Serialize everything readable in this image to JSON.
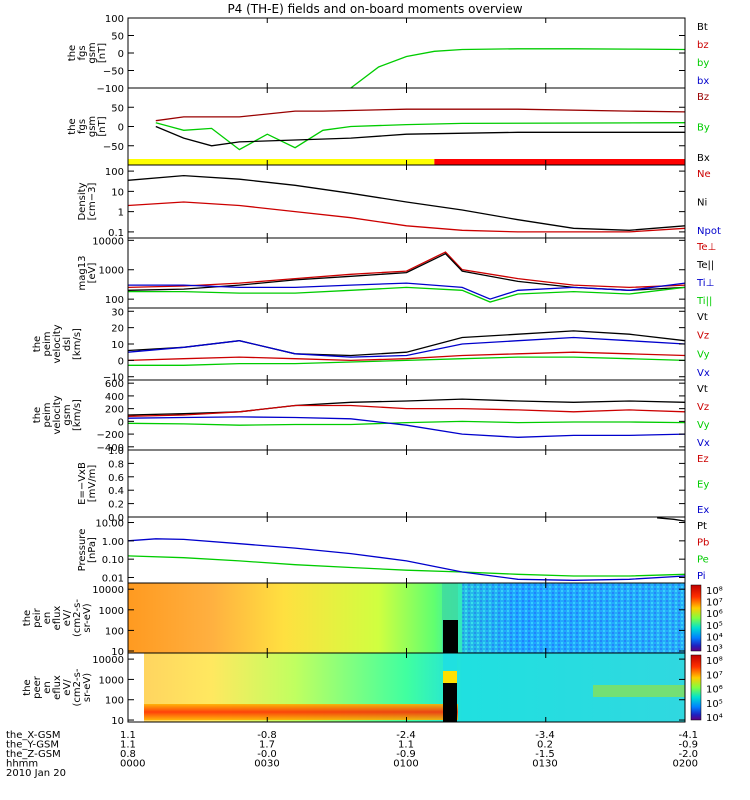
{
  "title": "P4 (TH-E) fields and on-board moments overview",
  "colors": {
    "black": "#000000",
    "red": "#cc0000",
    "green": "#00cc00",
    "blue": "#0000cc",
    "darkred": "#990000",
    "yellow": "#ffff00",
    "bar_red": "#ff0000"
  },
  "ephemeris": {
    "rows": [
      {
        "label": "the_X-GSM",
        "values": [
          "1.1",
          "-0.8",
          "-2.4",
          "-3.4",
          "-4.1"
        ]
      },
      {
        "label": "the_Y-GSM",
        "values": [
          "1.1",
          "1.7",
          "1.1",
          "0.2",
          "-0.9"
        ]
      },
      {
        "label": "the_Z-GSM",
        "values": [
          "0.8",
          "-0.0",
          "-0.9",
          "-1.5",
          "-2.0"
        ]
      },
      {
        "label": "hhmm",
        "values": [
          "0000",
          "0030",
          "0100",
          "0130",
          "0200"
        ]
      }
    ],
    "date": "2010 Jan 20"
  },
  "chart_data": [
    {
      "type": "line",
      "ylabel": [
        "the",
        "fgs",
        "gsm",
        "[nT]"
      ],
      "ylim": [
        -100,
        100
      ],
      "yticks": [
        "100",
        "50",
        "0",
        "−50",
        "−100"
      ],
      "tick_values": [
        100,
        50,
        0,
        -50,
        -100
      ],
      "series": [
        {
          "name": "Bt",
          "color": "#000000"
        },
        {
          "name": "bz",
          "color": "#cc0000"
        },
        {
          "name": "by",
          "color": "#00cc00",
          "x": [
            0.4,
            0.45,
            0.5,
            0.55,
            0.6,
            0.7,
            0.8,
            0.9,
            1.0
          ],
          "values": [
            -100,
            -40,
            -10,
            5,
            10,
            12,
            12,
            11,
            10
          ]
        },
        {
          "name": "bx",
          "color": "#0000cc"
        }
      ]
    },
    {
      "type": "line",
      "ylabel": [
        "the",
        "fgs",
        "gsm",
        "[nT]"
      ],
      "ylim": [
        -100,
        100
      ],
      "yticks": [
        "50",
        "0",
        "−50"
      ],
      "tick_values": [
        50,
        0,
        -50
      ],
      "series": [
        {
          "name": "Bz",
          "color": "#990000",
          "x": [
            0.05,
            0.1,
            0.2,
            0.3,
            0.35,
            0.5,
            0.7,
            0.9,
            1.0
          ],
          "values": [
            15,
            25,
            25,
            40,
            40,
            45,
            45,
            40,
            38
          ]
        },
        {
          "name": "By",
          "color": "#00cc00",
          "x": [
            0.05,
            0.1,
            0.15,
            0.2,
            0.25,
            0.3,
            0.35,
            0.4,
            0.5,
            0.6,
            1.0
          ],
          "values": [
            10,
            -10,
            -5,
            -60,
            -20,
            -55,
            -10,
            0,
            5,
            8,
            10
          ]
        },
        {
          "name": "Bx",
          "color": "#000000",
          "x": [
            0.05,
            0.1,
            0.15,
            0.2,
            0.3,
            0.4,
            0.5,
            0.7,
            1.0
          ],
          "values": [
            0,
            -30,
            -50,
            -40,
            -35,
            -30,
            -20,
            -15,
            -15
          ]
        }
      ],
      "status_bar": [
        {
          "from": 0,
          "to": 0.55,
          "color": "#ffff00"
        },
        {
          "from": 0.55,
          "to": 1.0,
          "color": "#ff0000"
        }
      ]
    },
    {
      "type": "line",
      "ylabel": [
        "Density",
        "[cm−3]"
      ],
      "scale": "log",
      "ylim": [
        0.05,
        200
      ],
      "yticks": [
        "100",
        "10",
        "1",
        "0.1"
      ],
      "tick_values": [
        100,
        10,
        1,
        0.1
      ],
      "series": [
        {
          "name": "Ne",
          "color": "#cc0000",
          "x": [
            0,
            0.1,
            0.2,
            0.3,
            0.4,
            0.5,
            0.6,
            0.7,
            0.8,
            0.9,
            1.0
          ],
          "values": [
            2,
            3,
            2,
            1,
            0.5,
            0.2,
            0.12,
            0.1,
            0.1,
            0.1,
            0.15
          ]
        },
        {
          "name": "Ni",
          "color": "#000000",
          "x": [
            0,
            0.1,
            0.2,
            0.3,
            0.4,
            0.5,
            0.6,
            0.7,
            0.8,
            0.9,
            1.0
          ],
          "values": [
            35,
            60,
            40,
            20,
            8,
            3,
            1.2,
            0.4,
            0.15,
            0.12,
            0.2
          ]
        },
        {
          "name": "Npot",
          "color": "#0000cc"
        }
      ]
    },
    {
      "type": "line",
      "ylabel": [
        "mag13",
        "[eV]"
      ],
      "scale": "log",
      "ylim": [
        50,
        12000
      ],
      "yticks": [
        "10000",
        "1000",
        "100"
      ],
      "tick_values": [
        10000,
        1000,
        100
      ],
      "series": [
        {
          "name": "Te⊥",
          "color": "#cc0000",
          "x": [
            0,
            0.1,
            0.2,
            0.3,
            0.4,
            0.5,
            0.57,
            0.6,
            0.7,
            0.8,
            0.9,
            1.0
          ],
          "values": [
            250,
            280,
            350,
            500,
            700,
            900,
            4000,
            1000,
            500,
            300,
            250,
            300
          ]
        },
        {
          "name": "Te||",
          "color": "#000000",
          "x": [
            0,
            0.1,
            0.2,
            0.3,
            0.4,
            0.5,
            0.57,
            0.6,
            0.7,
            0.8,
            0.9,
            1.0
          ],
          "values": [
            200,
            220,
            300,
            450,
            600,
            800,
            3500,
            900,
            400,
            250,
            200,
            250
          ]
        },
        {
          "name": "Ti⊥",
          "color": "#0000cc",
          "x": [
            0,
            0.1,
            0.2,
            0.3,
            0.4,
            0.5,
            0.6,
            0.65,
            0.7,
            0.8,
            0.9,
            1.0
          ],
          "values": [
            300,
            300,
            250,
            250,
            300,
            350,
            250,
            100,
            200,
            250,
            200,
            350
          ]
        },
        {
          "name": "Ti||",
          "color": "#00cc00",
          "x": [
            0,
            0.1,
            0.2,
            0.3,
            0.4,
            0.5,
            0.6,
            0.65,
            0.7,
            0.8,
            0.9,
            1.0
          ],
          "values": [
            180,
            180,
            160,
            160,
            200,
            250,
            200,
            80,
            150,
            180,
            150,
            250
          ]
        }
      ]
    },
    {
      "type": "line",
      "ylabel": [
        "the",
        "peim",
        "velocity",
        "dsl",
        "[km/s]"
      ],
      "ylim": [
        -12,
        32
      ],
      "yticks": [
        "30",
        "20",
        "10",
        "0",
        "−10"
      ],
      "tick_values": [
        30,
        20,
        10,
        0,
        -10
      ],
      "series": [
        {
          "name": "Vt",
          "color": "#000000",
          "x": [
            0,
            0.1,
            0.2,
            0.3,
            0.4,
            0.5,
            0.6,
            0.7,
            0.8,
            0.9,
            1.0
          ],
          "values": [
            6,
            8,
            12,
            4,
            3,
            5,
            14,
            16,
            18,
            16,
            12
          ]
        },
        {
          "name": "Vz",
          "color": "#cc0000",
          "x": [
            0,
            0.1,
            0.2,
            0.3,
            0.4,
            0.5,
            0.6,
            0.7,
            0.8,
            0.9,
            1.0
          ],
          "values": [
            0,
            1,
            2,
            1,
            0,
            1,
            3,
            4,
            5,
            4,
            3
          ]
        },
        {
          "name": "Vy",
          "color": "#00cc00",
          "x": [
            0,
            0.1,
            0.2,
            0.3,
            0.4,
            0.5,
            0.6,
            0.7,
            0.8,
            0.9,
            1.0
          ],
          "values": [
            -3,
            -3,
            -2,
            -2,
            -1,
            0,
            1,
            2,
            2,
            1,
            0
          ]
        },
        {
          "name": "Vx",
          "color": "#0000cc",
          "x": [
            0,
            0.1,
            0.2,
            0.3,
            0.4,
            0.5,
            0.6,
            0.7,
            0.8,
            0.9,
            1.0
          ],
          "values": [
            5,
            8,
            12,
            4,
            2,
            3,
            10,
            12,
            14,
            12,
            10
          ]
        }
      ]
    },
    {
      "type": "line",
      "ylabel": [
        "the",
        "peim",
        "velocity",
        "gsm",
        "[km/s]"
      ],
      "ylim": [
        -450,
        650
      ],
      "yticks": [
        "600",
        "400",
        "200",
        "0",
        "−200",
        "−400"
      ],
      "tick_values": [
        600,
        400,
        200,
        0,
        -200,
        -400
      ],
      "series": [
        {
          "name": "Vt",
          "color": "#000000",
          "x": [
            0,
            0.1,
            0.2,
            0.3,
            0.4,
            0.5,
            0.6,
            0.7,
            0.8,
            0.9,
            1.0
          ],
          "values": [
            100,
            120,
            150,
            250,
            300,
            320,
            350,
            320,
            300,
            320,
            300
          ]
        },
        {
          "name": "Vz",
          "color": "#cc0000",
          "x": [
            0,
            0.1,
            0.2,
            0.3,
            0.4,
            0.5,
            0.6,
            0.7,
            0.8,
            0.9,
            1.0
          ],
          "values": [
            80,
            100,
            150,
            250,
            250,
            200,
            200,
            180,
            150,
            180,
            150
          ]
        },
        {
          "name": "Vy",
          "color": "#00cc00",
          "x": [
            0,
            0.1,
            0.2,
            0.3,
            0.4,
            0.5,
            0.6,
            0.7,
            0.8,
            0.9,
            1.0
          ],
          "values": [
            -30,
            -40,
            -60,
            -50,
            -50,
            -20,
            0,
            -20,
            -10,
            -10,
            -20
          ]
        },
        {
          "name": "Vx",
          "color": "#0000cc",
          "x": [
            0,
            0.1,
            0.2,
            0.3,
            0.4,
            0.5,
            0.6,
            0.7,
            0.8,
            0.9,
            1.0
          ],
          "values": [
            50,
            60,
            70,
            60,
            40,
            -60,
            -200,
            -250,
            -220,
            -220,
            -200
          ]
        }
      ]
    },
    {
      "type": "line",
      "ylabel": [
        "E=−VxB",
        "[mV/m]"
      ],
      "ylim": [
        0,
        1
      ],
      "yticks": [
        "1.0",
        "0.8",
        "0.6",
        "0.4",
        "0.2",
        "0.0"
      ],
      "tick_values": [
        1.0,
        0.8,
        0.6,
        0.4,
        0.2,
        0.0
      ],
      "series": [
        {
          "name": "Ez",
          "color": "#cc0000"
        },
        {
          "name": "Ey",
          "color": "#00cc00"
        },
        {
          "name": "Ex",
          "color": "#0000cc"
        }
      ]
    },
    {
      "type": "line",
      "ylabel": [
        "Pressure",
        "[nPa]"
      ],
      "scale": "log",
      "ylim": [
        0.005,
        20
      ],
      "yticks": [
        "10.00",
        "1.00",
        "0.10",
        "0.01"
      ],
      "tick_values": [
        10,
        1,
        0.1,
        0.01
      ],
      "series": [
        {
          "name": "Pt",
          "color": "#000000",
          "x": [
            0.95,
            0.98,
            1.0
          ],
          "values": [
            18,
            15,
            12
          ]
        },
        {
          "name": "Pb",
          "color": "#cc0000"
        },
        {
          "name": "Pe",
          "color": "#00cc00",
          "x": [
            0,
            0.1,
            0.2,
            0.3,
            0.4,
            0.5,
            0.6,
            0.7,
            0.8,
            0.9,
            1.0
          ],
          "values": [
            0.15,
            0.12,
            0.08,
            0.05,
            0.035,
            0.025,
            0.02,
            0.015,
            0.012,
            0.012,
            0.015
          ]
        },
        {
          "name": "Pi",
          "color": "#0000cc",
          "x": [
            0,
            0.05,
            0.1,
            0.2,
            0.3,
            0.4,
            0.5,
            0.6,
            0.7,
            0.8,
            0.9,
            1.0
          ],
          "values": [
            1.0,
            1.3,
            1.2,
            0.7,
            0.4,
            0.2,
            0.08,
            0.02,
            0.008,
            0.007,
            0.008,
            0.012
          ]
        }
      ]
    },
    {
      "type": "heatmap",
      "ylabel": [
        "the",
        "peir",
        "en",
        "eflux",
        "eV/",
        "(cm2-s-",
        "sr-eV)"
      ],
      "scale": "log",
      "ylim": [
        8,
        20000
      ],
      "yticks": [
        "10000",
        "1000",
        "100",
        "10"
      ],
      "tick_values": [
        10000,
        1000,
        100,
        10
      ],
      "colorbar": {
        "labels": [
          "10⁸",
          "10⁷",
          "10⁶",
          "10⁵",
          "10⁴",
          "10³"
        ]
      }
    },
    {
      "type": "heatmap",
      "ylabel": [
        "the",
        "peer",
        "en",
        "eflux",
        "eV/",
        "(cm2-s-",
        "sr-eV)"
      ],
      "scale": "log",
      "ylim": [
        8,
        20000
      ],
      "yticks": [
        "10000",
        "1000",
        "100",
        "10"
      ],
      "tick_values": [
        10000,
        1000,
        100,
        10
      ],
      "colorbar": {
        "labels": [
          "10⁸",
          "10⁷",
          "10⁶",
          "10⁵",
          "10⁴"
        ]
      }
    }
  ]
}
